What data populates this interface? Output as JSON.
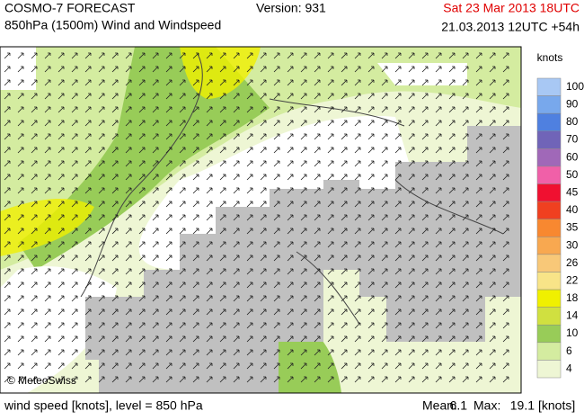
{
  "header": {
    "product": "COSMO-7 FORECAST",
    "subtitle": "850hPa (1500m) Wind and Windspeed",
    "version": "Version: 931",
    "valid_time": "Sat 23 Mar 2013 18UTC",
    "run_time": "21.03.2013 12UTC +54h"
  },
  "map": {
    "watermark": "© MeteoSwiss"
  },
  "legend": {
    "title": "knots",
    "entries": [
      {
        "label": "100",
        "color": "#a8c8f4"
      },
      {
        "label": "90",
        "color": "#78a8ec"
      },
      {
        "label": "80",
        "color": "#4f80e0"
      },
      {
        "label": "70",
        "color": "#7064b8"
      },
      {
        "label": "60",
        "color": "#a068b8"
      },
      {
        "label": "50",
        "color": "#f060a8"
      },
      {
        "label": "45",
        "color": "#f01030"
      },
      {
        "label": "40",
        "color": "#f04020"
      },
      {
        "label": "35",
        "color": "#f88830"
      },
      {
        "label": "30",
        "color": "#f8a850"
      },
      {
        "label": "26",
        "color": "#f8c878"
      },
      {
        "label": "22",
        "color": "#f8e488"
      },
      {
        "label": "18",
        "color": "#f0f000"
      },
      {
        "label": "14",
        "color": "#d0e040"
      },
      {
        "label": "10",
        "color": "#98cc58"
      },
      {
        "label": "6",
        "color": "#d4eca0"
      },
      {
        "label": "4",
        "color": "#eef6d4"
      }
    ]
  },
  "footer": {
    "description": "wind speed [knots], level = 850 hPa",
    "mean_label": "Mean:",
    "mean": "6.1",
    "max_label": "Max:",
    "max": "19.1",
    "unit": "[knots]"
  }
}
